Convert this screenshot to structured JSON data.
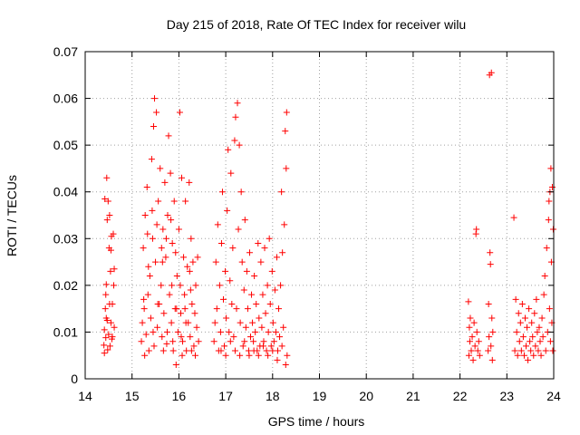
{
  "chart_data": {
    "type": "scatter",
    "title": "Day 215 of 2018, Rate Of TEC Index for receiver wilu",
    "xlabel": "GPS time / hours",
    "ylabel": "ROTI / TECUs",
    "xlim": [
      14,
      24
    ],
    "ylim": [
      0,
      0.07
    ],
    "x_ticks": [
      14,
      15,
      16,
      17,
      18,
      19,
      20,
      21,
      22,
      23,
      24
    ],
    "y_ticks": [
      0,
      0.01,
      0.02,
      0.03,
      0.04,
      0.05,
      0.06,
      0.07
    ],
    "x_tick_labels": [
      "14",
      "15",
      "16",
      "17",
      "18",
      "19",
      "20",
      "21",
      "22",
      "23",
      "24"
    ],
    "y_tick_labels": [
      "0",
      "0.01",
      "0.02",
      "0.03",
      "0.04",
      "0.05",
      "0.06",
      "0.07"
    ],
    "grid": true,
    "marker": "plus",
    "color": "#ff0000",
    "series": [
      {
        "name": "ROTI",
        "points": [
          [
            14.4,
            0.0072
          ],
          [
            14.41,
            0.0105
          ],
          [
            14.42,
            0.0385
          ],
          [
            14.43,
            0.015
          ],
          [
            14.44,
            0.0088
          ],
          [
            14.45,
            0.0202
          ],
          [
            14.46,
            0.043
          ],
          [
            14.47,
            0.0125
          ],
          [
            14.48,
            0.0062
          ],
          [
            14.49,
            0.038
          ],
          [
            14.5,
            0.0095
          ],
          [
            14.51,
            0.028
          ],
          [
            14.52,
            0.035
          ],
          [
            14.53,
            0.007
          ],
          [
            14.54,
            0.023
          ],
          [
            14.55,
            0.012
          ],
          [
            14.56,
            0.0305
          ],
          [
            14.57,
            0.0085
          ],
          [
            14.58,
            0.016
          ],
          [
            14.6,
            0.031
          ],
          [
            14.61,
            0.02
          ],
          [
            14.62,
            0.011
          ],
          [
            14.41,
            0.0055
          ],
          [
            14.44,
            0.018
          ],
          [
            14.47,
            0.034
          ],
          [
            14.52,
            0.016
          ],
          [
            14.55,
            0.0275
          ],
          [
            14.58,
            0.009
          ],
          [
            14.62,
            0.0235
          ],
          [
            14.45,
            0.013
          ],
          [
            15.2,
            0.008
          ],
          [
            15.22,
            0.012
          ],
          [
            15.24,
            0.028
          ],
          [
            15.26,
            0.015
          ],
          [
            15.28,
            0.035
          ],
          [
            15.3,
            0.0095
          ],
          [
            15.32,
            0.041
          ],
          [
            15.34,
            0.018
          ],
          [
            15.36,
            0.006
          ],
          [
            15.38,
            0.022
          ],
          [
            15.4,
            0.013
          ],
          [
            15.42,
            0.047
          ],
          [
            15.44,
            0.03
          ],
          [
            15.46,
            0.054
          ],
          [
            15.48,
            0.06
          ],
          [
            15.5,
            0.025
          ],
          [
            15.52,
            0.057
          ],
          [
            15.54,
            0.011
          ],
          [
            15.56,
            0.038
          ],
          [
            15.58,
            0.016
          ],
          [
            15.6,
            0.045
          ],
          [
            15.62,
            0.02
          ],
          [
            15.64,
            0.009
          ],
          [
            15.66,
            0.032
          ],
          [
            15.68,
            0.014
          ],
          [
            15.7,
            0.042
          ],
          [
            15.72,
            0.026
          ],
          [
            15.74,
            0.0075
          ],
          [
            15.76,
            0.035
          ],
          [
            15.78,
            0.052
          ],
          [
            15.8,
            0.018
          ],
          [
            15.82,
            0.044
          ],
          [
            15.84,
            0.012
          ],
          [
            15.86,
            0.029
          ],
          [
            15.88,
            0.006
          ],
          [
            15.9,
            0.038
          ],
          [
            15.92,
            0.015
          ],
          [
            15.94,
            0.003
          ],
          [
            15.96,
            0.022
          ],
          [
            15.98,
            0.01
          ],
          [
            16.0,
            0.032
          ],
          [
            16.02,
            0.057
          ],
          [
            16.04,
            0.014
          ],
          [
            16.06,
            0.043
          ],
          [
            16.08,
            0.008
          ],
          [
            16.1,
            0.026
          ],
          [
            16.12,
            0.018
          ],
          [
            16.14,
            0.038
          ],
          [
            16.16,
            0.006
          ],
          [
            16.18,
            0.024
          ],
          [
            16.2,
            0.012
          ],
          [
            16.22,
            0.042
          ],
          [
            16.24,
            0.009
          ],
          [
            16.26,
            0.03
          ],
          [
            16.28,
            0.016
          ],
          [
            16.3,
            0.025
          ],
          [
            16.32,
            0.007
          ],
          [
            16.34,
            0.014
          ],
          [
            16.36,
            0.02
          ],
          [
            16.38,
            0.011
          ],
          [
            16.4,
            0.026
          ],
          [
            16.42,
            0.008
          ],
          [
            15.25,
            0.017
          ],
          [
            15.35,
            0.024
          ],
          [
            15.45,
            0.01
          ],
          [
            15.55,
            0.016
          ],
          [
            15.65,
            0.025
          ],
          [
            15.75,
            0.01
          ],
          [
            15.85,
            0.02
          ],
          [
            15.95,
            0.015
          ],
          [
            16.05,
            0.009
          ],
          [
            16.15,
            0.012
          ],
          [
            16.25,
            0.019
          ],
          [
            16.35,
            0.005
          ],
          [
            15.33,
            0.031
          ],
          [
            15.43,
            0.036
          ],
          [
            15.53,
            0.033
          ],
          [
            15.63,
            0.028
          ],
          [
            15.73,
            0.03
          ],
          [
            15.83,
            0.034
          ],
          [
            15.93,
            0.027
          ],
          [
            16.03,
            0.02
          ],
          [
            16.13,
            0.015
          ],
          [
            16.23,
            0.023
          ],
          [
            15.27,
            0.005
          ],
          [
            15.47,
            0.007
          ],
          [
            15.67,
            0.006
          ],
          [
            15.87,
            0.008
          ],
          [
            16.07,
            0.005
          ],
          [
            16.27,
            0.006
          ],
          [
            16.75,
            0.008
          ],
          [
            16.77,
            0.012
          ],
          [
            16.79,
            0.025
          ],
          [
            16.81,
            0.015
          ],
          [
            16.83,
            0.033
          ],
          [
            16.85,
            0.006
          ],
          [
            16.87,
            0.02
          ],
          [
            16.89,
            0.01
          ],
          [
            16.91,
            0.029
          ],
          [
            16.93,
            0.04
          ],
          [
            16.95,
            0.017
          ],
          [
            16.97,
            0.007
          ],
          [
            16.99,
            0.023
          ],
          [
            17.01,
            0.013
          ],
          [
            17.03,
            0.036
          ],
          [
            17.05,
            0.049
          ],
          [
            17.07,
            0.01
          ],
          [
            17.09,
            0.021
          ],
          [
            17.11,
            0.044
          ],
          [
            17.13,
            0.016
          ],
          [
            17.15,
            0.028
          ],
          [
            17.17,
            0.009
          ],
          [
            17.19,
            0.051
          ],
          [
            17.21,
            0.056
          ],
          [
            17.23,
            0.015
          ],
          [
            17.25,
            0.059
          ],
          [
            17.27,
            0.032
          ],
          [
            17.29,
            0.05
          ],
          [
            17.31,
            0.012
          ],
          [
            17.33,
            0.04
          ],
          [
            17.35,
            0.025
          ],
          [
            17.37,
            0.007
          ],
          [
            17.39,
            0.019
          ],
          [
            17.41,
            0.034
          ],
          [
            17.43,
            0.011
          ],
          [
            17.45,
            0.023
          ],
          [
            17.47,
            0.015
          ],
          [
            17.49,
            0.006
          ],
          [
            17.51,
            0.027
          ],
          [
            17.53,
            0.009
          ],
          [
            17.55,
            0.018
          ],
          [
            17.57,
            0.012
          ],
          [
            17.59,
            0.008
          ],
          [
            17.61,
            0.022
          ],
          [
            17.63,
            0.01
          ],
          [
            17.65,
            0.016
          ],
          [
            17.67,
            0.006
          ],
          [
            17.69,
            0.029
          ],
          [
            17.71,
            0.013
          ],
          [
            17.73,
            0.007
          ],
          [
            17.75,
            0.025
          ],
          [
            17.77,
            0.011
          ],
          [
            17.79,
            0.018
          ],
          [
            17.81,
            0.008
          ],
          [
            17.83,
            0.028
          ],
          [
            17.85,
            0.014
          ],
          [
            17.87,
            0.006
          ],
          [
            17.89,
            0.02
          ],
          [
            17.91,
            0.01
          ],
          [
            17.93,
            0.03
          ],
          [
            17.95,
            0.016
          ],
          [
            17.97,
            0.007
          ],
          [
            17.99,
            0.023
          ],
          [
            18.01,
            0.012
          ],
          [
            18.03,
            0.008
          ],
          [
            18.05,
            0.019
          ],
          [
            18.07,
            0.01
          ],
          [
            18.09,
            0.026
          ],
          [
            18.11,
            0.006
          ],
          [
            18.13,
            0.015
          ],
          [
            18.15,
            0.009
          ],
          [
            18.17,
            0.02
          ],
          [
            18.19,
            0.04
          ],
          [
            18.21,
            0.027
          ],
          [
            18.23,
            0.011
          ],
          [
            18.25,
            0.033
          ],
          [
            18.27,
            0.053
          ],
          [
            18.29,
            0.045
          ],
          [
            18.3,
            0.057
          ],
          [
            18.31,
            0.005
          ],
          [
            16.9,
            0.006
          ],
          [
            17.0,
            0.005
          ],
          [
            17.1,
            0.008
          ],
          [
            17.2,
            0.006
          ],
          [
            17.3,
            0.005
          ],
          [
            17.4,
            0.008
          ],
          [
            17.5,
            0.005
          ],
          [
            17.6,
            0.006
          ],
          [
            17.7,
            0.005
          ],
          [
            17.8,
            0.007
          ],
          [
            17.9,
            0.005
          ],
          [
            18.0,
            0.006
          ],
          [
            18.1,
            0.004
          ],
          [
            18.2,
            0.007
          ],
          [
            18.28,
            0.003
          ],
          [
            22.18,
            0.0165
          ],
          [
            22.19,
            0.005
          ],
          [
            22.2,
            0.011
          ],
          [
            22.21,
            0.008
          ],
          [
            22.22,
            0.013
          ],
          [
            22.24,
            0.006
          ],
          [
            22.26,
            0.009
          ],
          [
            22.28,
            0.004
          ],
          [
            22.3,
            0.012
          ],
          [
            22.32,
            0.007
          ],
          [
            22.34,
            0.031
          ],
          [
            22.35,
            0.032
          ],
          [
            22.36,
            0.01
          ],
          [
            22.38,
            0.006
          ],
          [
            22.4,
            0.008
          ],
          [
            22.42,
            0.005
          ],
          [
            22.6,
            0.006
          ],
          [
            22.61,
            0.016
          ],
          [
            22.62,
            0.009
          ],
          [
            22.63,
            0.065
          ],
          [
            22.64,
            0.027
          ],
          [
            22.65,
            0.0245
          ],
          [
            22.66,
            0.007
          ],
          [
            22.67,
            0.0655
          ],
          [
            22.68,
            0.013
          ],
          [
            22.69,
            0.004
          ],
          [
            22.7,
            0.01
          ],
          [
            23.15,
            0.0345
          ],
          [
            23.17,
            0.006
          ],
          [
            23.19,
            0.017
          ],
          [
            23.21,
            0.01
          ],
          [
            23.23,
            0.005
          ],
          [
            23.25,
            0.014
          ],
          [
            23.27,
            0.008
          ],
          [
            23.29,
            0.012
          ],
          [
            23.31,
            0.006
          ],
          [
            23.33,
            0.016
          ],
          [
            23.35,
            0.009
          ],
          [
            23.37,
            0.005
          ],
          [
            23.39,
            0.013
          ],
          [
            23.41,
            0.007
          ],
          [
            23.43,
            0.011
          ],
          [
            23.45,
            0.004
          ],
          [
            23.47,
            0.015
          ],
          [
            23.49,
            0.008
          ],
          [
            23.51,
            0.006
          ],
          [
            23.53,
            0.012
          ],
          [
            23.55,
            0.009
          ],
          [
            23.57,
            0.005
          ],
          [
            23.59,
            0.014
          ],
          [
            23.61,
            0.007
          ],
          [
            23.63,
            0.017
          ],
          [
            23.65,
            0.01
          ],
          [
            23.67,
            0.006
          ],
          [
            23.69,
            0.011
          ],
          [
            23.71,
            0.008
          ],
          [
            23.73,
            0.005
          ],
          [
            23.75,
            0.013
          ],
          [
            23.77,
            0.009
          ],
          [
            23.79,
            0.018
          ],
          [
            23.81,
            0.022
          ],
          [
            23.83,
            0.006
          ],
          [
            23.85,
            0.028
          ],
          [
            23.87,
            0.01
          ],
          [
            23.89,
            0.034
          ],
          [
            23.9,
            0.038
          ],
          [
            23.91,
            0.015
          ],
          [
            23.92,
            0.04
          ],
          [
            23.93,
            0.008
          ],
          [
            23.94,
            0.045
          ],
          [
            23.95,
            0.025
          ],
          [
            23.96,
            0.012
          ],
          [
            23.97,
            0.041
          ],
          [
            23.98,
            0.006
          ],
          [
            23.99,
            0.032
          ]
        ]
      }
    ]
  }
}
